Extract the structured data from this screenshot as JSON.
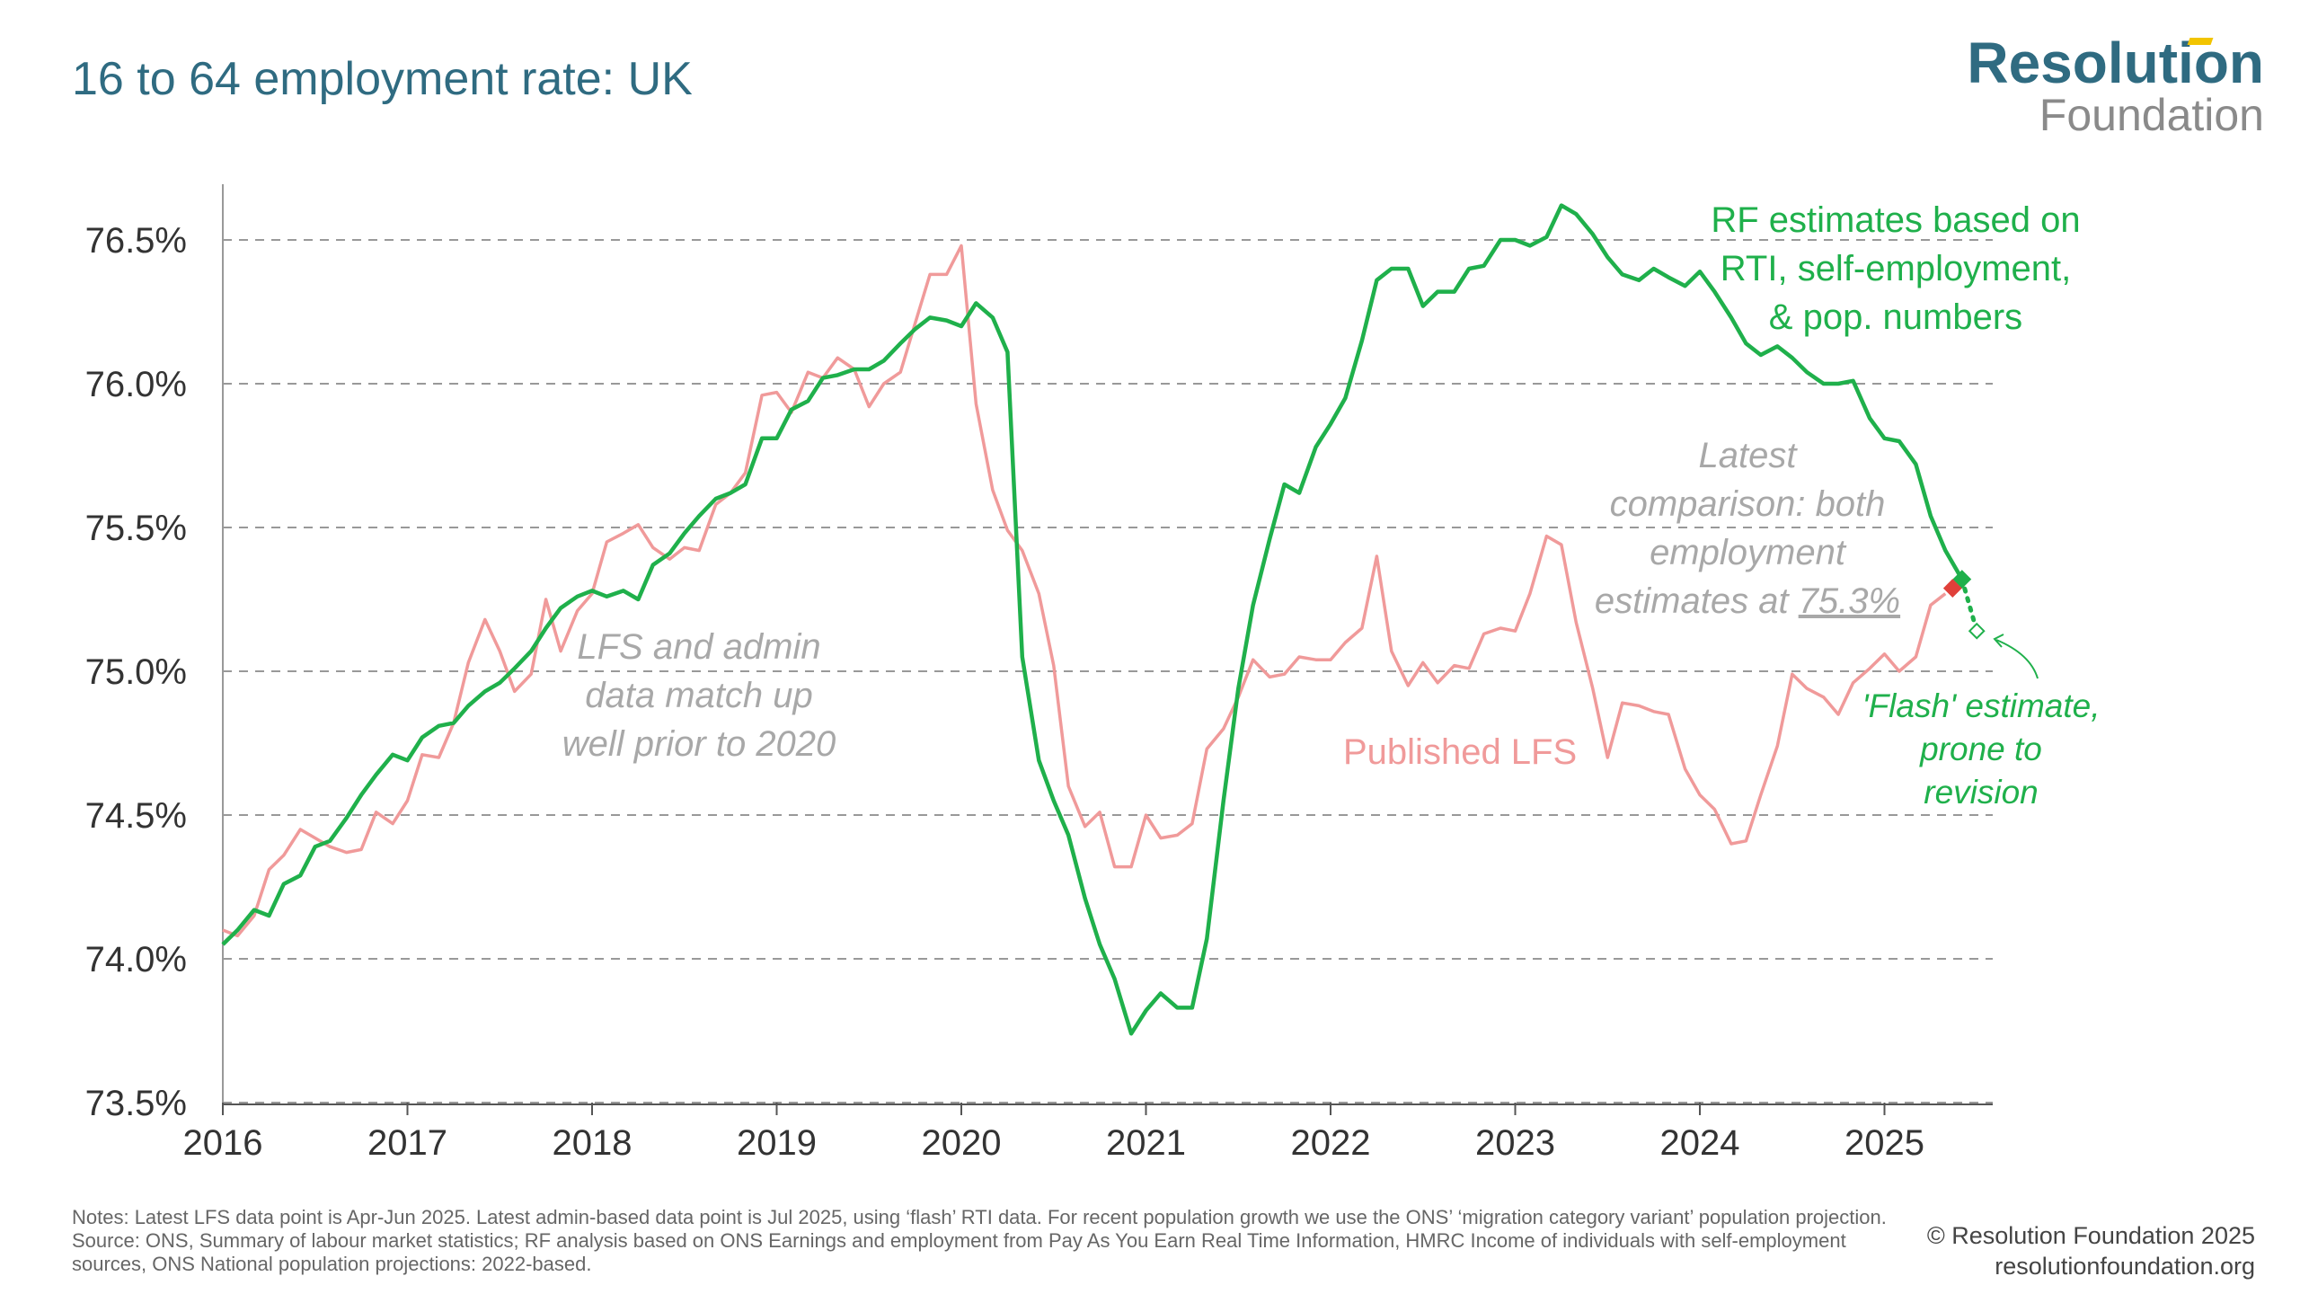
{
  "header": {
    "title": "16 to 64 employment rate: UK",
    "logo_line1": "Resolution",
    "logo_line2": "Foundation"
  },
  "footer": {
    "notes": "Notes: Latest LFS data point is Apr-Jun 2025. Latest admin-based data point is Jul 2025, using ‘flash’ RTI data. For recent population growth we use the ONS’ ‘migration category variant’ population projection.",
    "source": "Source: ONS, Summary of labour market statistics; RF analysis based on ONS Earnings and employment from Pay As You Earn Real Time Information, HMRC Income of individuals with self-employment sources, ONS National population projections: 2022-based.",
    "copyright": "© Resolution Foundation 2025",
    "website": "resolutionfoundation.org"
  },
  "colors": {
    "rf_line": "#1fb04b",
    "lfs_line": "#f09a9a",
    "lfs_marker": "#e0403a",
    "annotation_gray": "#a8a8a8",
    "axis": "#333333",
    "grid": "#999999"
  },
  "chart_data": {
    "type": "line",
    "x_axis": {
      "unit": "year",
      "range": [
        2016,
        2025.6
      ],
      "ticks": [
        "2016",
        "2017",
        "2018",
        "2019",
        "2020",
        "2021",
        "2022",
        "2023",
        "2024",
        "2025"
      ]
    },
    "y_axis": {
      "unit": "percent",
      "range": [
        73.5,
        76.7
      ],
      "ticks": [
        73.5,
        74.0,
        74.5,
        75.0,
        75.5,
        76.0,
        76.5
      ],
      "tick_labels": [
        "73.5%",
        "74.0%",
        "74.5%",
        "75.0%",
        "75.5%",
        "76.0%",
        "76.5%"
      ]
    },
    "grid": "horizontal dashed",
    "series": [
      {
        "name": "RF estimates based on RTI, self-employment, & pop. numbers",
        "color": "#1fb04b",
        "points": [
          [
            2016.0,
            74.05
          ],
          [
            2016.08,
            74.1
          ],
          [
            2016.17,
            74.17
          ],
          [
            2016.25,
            74.15
          ],
          [
            2016.33,
            74.26
          ],
          [
            2016.42,
            74.29
          ],
          [
            2016.5,
            74.39
          ],
          [
            2016.58,
            74.41
          ],
          [
            2016.67,
            74.49
          ],
          [
            2016.75,
            74.57
          ],
          [
            2016.83,
            74.64
          ],
          [
            2016.92,
            74.71
          ],
          [
            2017.0,
            74.69
          ],
          [
            2017.08,
            74.77
          ],
          [
            2017.17,
            74.81
          ],
          [
            2017.25,
            74.82
          ],
          [
            2017.33,
            74.88
          ],
          [
            2017.42,
            74.93
          ],
          [
            2017.5,
            74.96
          ],
          [
            2017.58,
            75.01
          ],
          [
            2017.67,
            75.07
          ],
          [
            2017.75,
            75.15
          ],
          [
            2017.83,
            75.22
          ],
          [
            2017.92,
            75.26
          ],
          [
            2018.0,
            75.28
          ],
          [
            2018.08,
            75.26
          ],
          [
            2018.17,
            75.28
          ],
          [
            2018.25,
            75.25
          ],
          [
            2018.33,
            75.37
          ],
          [
            2018.42,
            75.41
          ],
          [
            2018.5,
            75.48
          ],
          [
            2018.58,
            75.54
          ],
          [
            2018.67,
            75.6
          ],
          [
            2018.75,
            75.62
          ],
          [
            2018.83,
            75.65
          ],
          [
            2018.92,
            75.81
          ],
          [
            2019.0,
            75.81
          ],
          [
            2019.08,
            75.91
          ],
          [
            2019.17,
            75.94
          ],
          [
            2019.25,
            76.02
          ],
          [
            2019.33,
            76.03
          ],
          [
            2019.42,
            76.05
          ],
          [
            2019.5,
            76.05
          ],
          [
            2019.58,
            76.08
          ],
          [
            2019.67,
            76.14
          ],
          [
            2019.75,
            76.19
          ],
          [
            2019.83,
            76.23
          ],
          [
            2019.92,
            76.22
          ],
          [
            2020.0,
            76.2
          ],
          [
            2020.08,
            76.28
          ],
          [
            2020.17,
            76.23
          ],
          [
            2020.25,
            76.11
          ],
          [
            2020.33,
            75.05
          ],
          [
            2020.42,
            74.69
          ],
          [
            2020.5,
            74.55
          ],
          [
            2020.58,
            74.43
          ],
          [
            2020.67,
            74.21
          ],
          [
            2020.75,
            74.05
          ],
          [
            2020.83,
            73.93
          ],
          [
            2020.92,
            73.74
          ],
          [
            2021.0,
            73.82
          ],
          [
            2021.08,
            73.88
          ],
          [
            2021.17,
            73.83
          ],
          [
            2021.25,
            73.83
          ],
          [
            2021.33,
            74.07
          ],
          [
            2021.42,
            74.55
          ],
          [
            2021.5,
            74.94
          ],
          [
            2021.58,
            75.23
          ],
          [
            2021.67,
            75.46
          ],
          [
            2021.75,
            75.65
          ],
          [
            2021.83,
            75.62
          ],
          [
            2021.92,
            75.78
          ],
          [
            2022.0,
            75.86
          ],
          [
            2022.08,
            75.95
          ],
          [
            2022.17,
            76.15
          ],
          [
            2022.25,
            76.36
          ],
          [
            2022.33,
            76.4
          ],
          [
            2022.42,
            76.4
          ],
          [
            2022.5,
            76.27
          ],
          [
            2022.58,
            76.32
          ],
          [
            2022.67,
            76.32
          ],
          [
            2022.75,
            76.4
          ],
          [
            2022.83,
            76.41
          ],
          [
            2022.92,
            76.5
          ],
          [
            2023.0,
            76.5
          ],
          [
            2023.08,
            76.48
          ],
          [
            2023.17,
            76.51
          ],
          [
            2023.25,
            76.62
          ],
          [
            2023.33,
            76.59
          ],
          [
            2023.42,
            76.52
          ],
          [
            2023.5,
            76.44
          ],
          [
            2023.58,
            76.38
          ],
          [
            2023.67,
            76.36
          ],
          [
            2023.75,
            76.4
          ],
          [
            2023.83,
            76.37
          ],
          [
            2023.92,
            76.34
          ],
          [
            2024.0,
            76.39
          ],
          [
            2024.08,
            76.32
          ],
          [
            2024.17,
            76.23
          ],
          [
            2024.25,
            76.14
          ],
          [
            2024.33,
            76.1
          ],
          [
            2024.42,
            76.13
          ],
          [
            2024.5,
            76.09
          ],
          [
            2024.58,
            76.04
          ],
          [
            2024.67,
            76.0
          ],
          [
            2024.75,
            76.0
          ],
          [
            2024.83,
            76.01
          ],
          [
            2024.92,
            75.88
          ],
          [
            2025.0,
            75.81
          ],
          [
            2025.08,
            75.8
          ],
          [
            2025.17,
            75.72
          ],
          [
            2025.25,
            75.54
          ],
          [
            2025.33,
            75.42
          ],
          [
            2025.42,
            75.32
          ]
        ]
      },
      {
        "name": "Published LFS",
        "color": "#f09a9a",
        "points": [
          [
            2016.0,
            74.1
          ],
          [
            2016.08,
            74.08
          ],
          [
            2016.17,
            74.15
          ],
          [
            2016.25,
            74.31
          ],
          [
            2016.33,
            74.36
          ],
          [
            2016.42,
            74.45
          ],
          [
            2016.5,
            74.42
          ],
          [
            2016.58,
            74.39
          ],
          [
            2016.67,
            74.37
          ],
          [
            2016.75,
            74.38
          ],
          [
            2016.83,
            74.51
          ],
          [
            2016.92,
            74.47
          ],
          [
            2017.0,
            74.55
          ],
          [
            2017.08,
            74.71
          ],
          [
            2017.17,
            74.7
          ],
          [
            2017.25,
            74.82
          ],
          [
            2017.33,
            75.03
          ],
          [
            2017.42,
            75.18
          ],
          [
            2017.5,
            75.07
          ],
          [
            2017.58,
            74.93
          ],
          [
            2017.67,
            74.99
          ],
          [
            2017.75,
            75.25
          ],
          [
            2017.83,
            75.07
          ],
          [
            2017.92,
            75.21
          ],
          [
            2018.0,
            75.27
          ],
          [
            2018.08,
            75.45
          ],
          [
            2018.17,
            75.48
          ],
          [
            2018.25,
            75.51
          ],
          [
            2018.33,
            75.43
          ],
          [
            2018.42,
            75.39
          ],
          [
            2018.5,
            75.43
          ],
          [
            2018.58,
            75.42
          ],
          [
            2018.67,
            75.58
          ],
          [
            2018.75,
            75.62
          ],
          [
            2018.83,
            75.69
          ],
          [
            2018.92,
            75.96
          ],
          [
            2019.0,
            75.97
          ],
          [
            2019.08,
            75.9
          ],
          [
            2019.17,
            76.04
          ],
          [
            2019.25,
            76.02
          ],
          [
            2019.33,
            76.09
          ],
          [
            2019.42,
            76.05
          ],
          [
            2019.5,
            75.92
          ],
          [
            2019.58,
            76.0
          ],
          [
            2019.67,
            76.04
          ],
          [
            2019.75,
            76.21
          ],
          [
            2019.83,
            76.38
          ],
          [
            2019.92,
            76.38
          ],
          [
            2020.0,
            76.48
          ],
          [
            2020.08,
            75.93
          ],
          [
            2020.17,
            75.63
          ],
          [
            2020.25,
            75.49
          ],
          [
            2020.33,
            75.42
          ],
          [
            2020.42,
            75.27
          ],
          [
            2020.5,
            75.02
          ],
          [
            2020.58,
            74.6
          ],
          [
            2020.67,
            74.46
          ],
          [
            2020.75,
            74.51
          ],
          [
            2020.83,
            74.32
          ],
          [
            2020.92,
            74.32
          ],
          [
            2021.0,
            74.5
          ],
          [
            2021.08,
            74.42
          ],
          [
            2021.17,
            74.43
          ],
          [
            2021.25,
            74.47
          ],
          [
            2021.33,
            74.73
          ],
          [
            2021.42,
            74.8
          ],
          [
            2021.5,
            74.91
          ],
          [
            2021.58,
            75.04
          ],
          [
            2021.67,
            74.98
          ],
          [
            2021.75,
            74.99
          ],
          [
            2021.83,
            75.05
          ],
          [
            2021.92,
            75.04
          ],
          [
            2022.0,
            75.04
          ],
          [
            2022.08,
            75.1
          ],
          [
            2022.17,
            75.15
          ],
          [
            2022.25,
            75.4
          ],
          [
            2022.33,
            75.07
          ],
          [
            2022.42,
            74.95
          ],
          [
            2022.5,
            75.03
          ],
          [
            2022.58,
            74.96
          ],
          [
            2022.67,
            75.02
          ],
          [
            2022.75,
            75.01
          ],
          [
            2022.83,
            75.13
          ],
          [
            2022.92,
            75.15
          ],
          [
            2023.0,
            75.14
          ],
          [
            2023.08,
            75.27
          ],
          [
            2023.17,
            75.47
          ],
          [
            2023.25,
            75.44
          ],
          [
            2023.33,
            75.17
          ],
          [
            2023.42,
            74.94
          ],
          [
            2023.5,
            74.7
          ],
          [
            2023.58,
            74.89
          ],
          [
            2023.67,
            74.88
          ],
          [
            2023.75,
            74.86
          ],
          [
            2023.83,
            74.85
          ],
          [
            2023.92,
            74.66
          ],
          [
            2024.0,
            74.57
          ],
          [
            2024.08,
            74.52
          ],
          [
            2024.17,
            74.4
          ],
          [
            2024.25,
            74.41
          ],
          [
            2024.33,
            74.57
          ],
          [
            2024.42,
            74.74
          ],
          [
            2024.5,
            74.99
          ],
          [
            2024.58,
            74.94
          ],
          [
            2024.67,
            74.91
          ],
          [
            2024.75,
            74.85
          ],
          [
            2024.83,
            74.96
          ],
          [
            2024.92,
            75.01
          ],
          [
            2025.0,
            75.06
          ],
          [
            2025.08,
            75.0
          ],
          [
            2025.17,
            75.05
          ],
          [
            2025.25,
            75.23
          ],
          [
            2025.33,
            75.27
          ]
        ]
      }
    ],
    "flash_estimate": {
      "label": "'Flash' estimate, prone to revision",
      "from": [
        2025.42,
        75.32
      ],
      "to": [
        2025.5,
        75.14
      ]
    },
    "annotations": {
      "rf_label": "RF estimates based on RTI, self-employment, & pop. numbers",
      "lfs_label": "Published LFS",
      "match_label": "LFS and admin data match up well prior to 2020",
      "latest_label_pre": "Latest comparison: both employment estimates at ",
      "latest_label_value": "75.3%",
      "flash_label": "'Flash' estimate, prone to revision"
    }
  }
}
